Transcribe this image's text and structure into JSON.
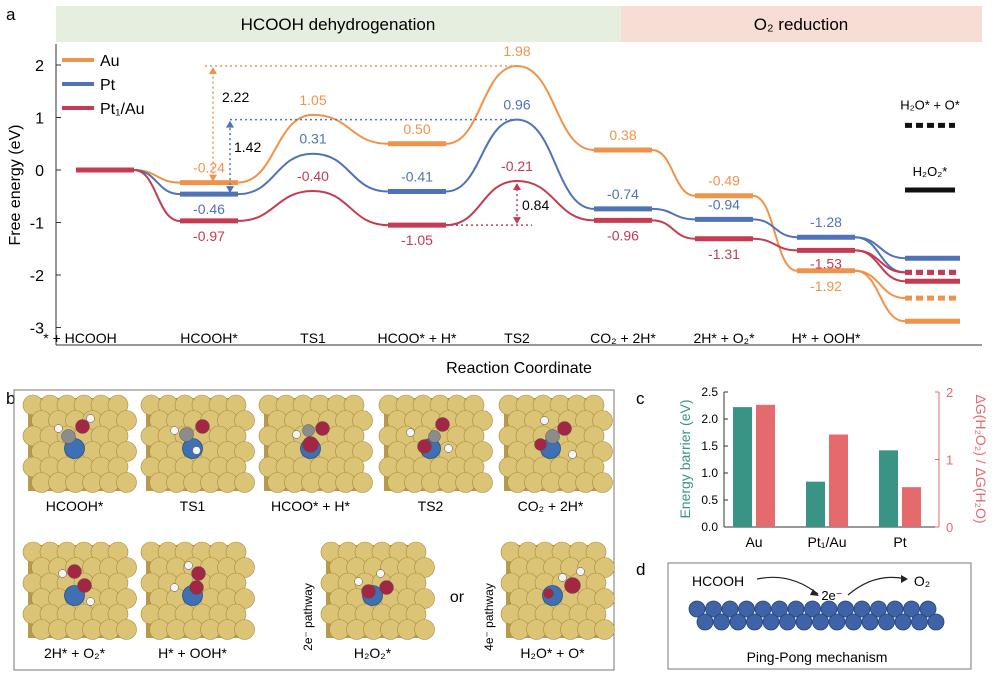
{
  "panel_labels": {
    "a": "a",
    "b": "b",
    "c": "c",
    "d": "d"
  },
  "phases": {
    "left": "HCOOH  dehydrogenation",
    "right": "O₂ reduction"
  },
  "colors": {
    "Au": "#f0934a",
    "Pt": "#4f73b6",
    "Pt1Au": "#c43b52",
    "phase_left": "#e6efdf",
    "phase_right": "#f8ddd5",
    "bar_energy": "#3a9485",
    "bar_ratio": "#e46a6d",
    "atom_gold": "#dcc477",
    "atom_metal": "#3e70b3",
    "atom_O": "#a32745",
    "atom_C": "#8c8c8c",
    "atom_H": "#f4f4f4"
  },
  "chart_data": [
    {
      "type": "line",
      "panel": "a",
      "xlabel": "Reaction Coordinate",
      "ylabel": "Free energy (eV)",
      "ylim": [
        -3.3,
        2.3
      ],
      "yticks": [
        "2",
        "1",
        "0",
        "-1",
        "-2",
        "-3"
      ],
      "categories": [
        "* + HCOOH",
        "HCOOH*",
        "TS1",
        "HCOO* + H*",
        "TS2",
        "CO₂ + 2H*",
        "2H* + O₂*",
        "H* + OOH*"
      ],
      "final_state_labels": [
        "H₂O* + O*",
        "H₂O₂*"
      ],
      "final_state_levels": {
        "H2O_O_marker": 0.85,
        "H2O2_marker": -0.38
      },
      "legend": [
        "Au",
        "Pt",
        "Pt₁/Au"
      ],
      "series": [
        {
          "name": "Au",
          "values": [
            0,
            -0.24,
            1.05,
            0.5,
            1.98,
            0.38,
            -0.49,
            -1.92
          ],
          "labels": [
            "",
            "-0.24",
            "1.05",
            "0.50",
            "1.98",
            "0.38",
            "-0.49",
            "-1.92"
          ],
          "final_4e": -2.88,
          "final_2e": -2.44
        },
        {
          "name": "Pt",
          "values": [
            0,
            -0.46,
            0.31,
            -0.41,
            0.96,
            -0.74,
            -0.94,
            -1.28
          ],
          "labels": [
            "",
            "-0.46",
            "0.31",
            "-0.41",
            "0.96",
            "-0.74",
            "-0.94",
            "-1.28"
          ],
          "final_4e": -1.68,
          "final_2e": -1.95
        },
        {
          "name": "Pt₁/Au",
          "values": [
            0,
            -0.97,
            -0.4,
            -1.05,
            -0.21,
            -0.96,
            -1.31,
            -1.53
          ],
          "labels": [
            "",
            "-0.97",
            "-0.40",
            "-1.05",
            "-0.21",
            "-0.96",
            "-1.31",
            "-1.53"
          ],
          "final_4e": -2.12,
          "final_2e": -1.95
        }
      ],
      "annotations": [
        {
          "text": "2.22",
          "series": "Au"
        },
        {
          "text": "1.42",
          "series": "Pt"
        },
        {
          "text": "0.84",
          "series": "Pt₁/Au"
        }
      ]
    },
    {
      "type": "bar",
      "panel": "c",
      "categories": [
        "Au",
        "Pt₁/Au",
        "Pt"
      ],
      "ylabel_left": "Energy barrier (eV)",
      "ylabel_right": "ΔG(H₂O₂) / ΔG(H₂O)",
      "ylim_left": [
        0,
        2.5
      ],
      "ylim_right": [
        0,
        2
      ],
      "yticks_left": [
        "0.0",
        "0.5",
        "1.0",
        "1.5",
        "2.0",
        "2.5"
      ],
      "yticks_right": [
        "0",
        "1",
        "2"
      ],
      "series": [
        {
          "name": "Energy barrier",
          "axis": "left",
          "values": [
            2.22,
            0.84,
            1.42
          ]
        },
        {
          "name": "Ratio",
          "axis": "right",
          "values": [
            1.81,
            1.37,
            0.59
          ]
        }
      ]
    }
  ],
  "panel_b": {
    "captions": [
      "HCOOH*",
      "TS1",
      "HCOO* + H*",
      "TS2",
      "CO₂ + 2H*",
      "2H* + O₂*",
      "H* + OOH*",
      "H₂O₂*",
      "H₂O* + O*"
    ],
    "pathway_2e": "2e⁻ pathway",
    "pathway_4e": "4e⁻ pathway",
    "or_text": "or"
  },
  "panel_d": {
    "reactant": "HCOOH",
    "electrons": "2e⁻",
    "product": "O₂",
    "caption": "Ping-Pong mechanism"
  }
}
